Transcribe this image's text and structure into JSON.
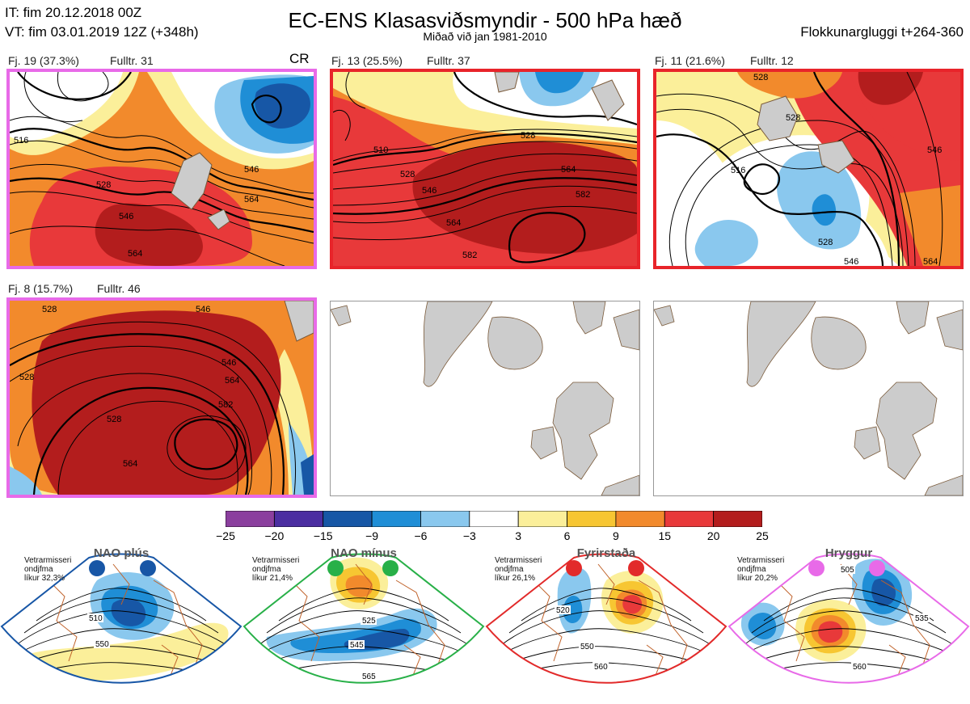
{
  "header": {
    "it_line": "IT: fim 20.12.2018 00Z",
    "vt_line": "VT: fim 03.01.2019 12Z  (+348h)",
    "title": "EC-ENS Klasasviðsmyndir - 500 hPa hæð",
    "subtitle": "Miðað við jan 1981-2010",
    "window": "Flokkunargluggi t+264-360"
  },
  "colors": {
    "pink": "#e86ae8",
    "red": "#e8242a",
    "land": "#cccccc",
    "coast": "#7a5a3a"
  },
  "clusters": [
    {
      "label": "Fj. 19 (37.3%)",
      "rep": "Fulltr. 31",
      "tag": "CR",
      "border": "pink",
      "contours": [
        "516",
        "528",
        "546",
        "564",
        "546",
        "564"
      ]
    },
    {
      "label": "Fj. 13 (25.5%)",
      "rep": "Fulltr. 37",
      "tag": "",
      "border": "red",
      "contours": [
        "510",
        "528",
        "546",
        "564",
        "582",
        "528",
        "564",
        "582"
      ]
    },
    {
      "label": "Fj. 11 (21.6%)",
      "rep": "Fulltr. 12",
      "tag": "",
      "border": "red",
      "contours": [
        "528",
        "516",
        "528",
        "546",
        "528",
        "546",
        "564"
      ]
    },
    {
      "label": "Fj. 8 (15.7%)",
      "rep": "Fulltr. 46",
      "tag": "",
      "border": "pink",
      "contours": [
        "528",
        "528",
        "546",
        "546",
        "564",
        "582",
        "528",
        "564"
      ]
    }
  ],
  "chart_data": {
    "type": "heatmap",
    "field": "500 hPa geopotential height anomaly (dam)",
    "colorbar": {
      "ticks": [
        "−25",
        "−20",
        "−15",
        "−9",
        "−6",
        "−3",
        "3",
        "6",
        "9",
        "15",
        "20",
        "25"
      ],
      "colors": [
        "#8b3f9e",
        "#4b2ea1",
        "#1757a6",
        "#1f8ed6",
        "#8ac8ee",
        "#ffffff",
        "#fbef9a",
        "#f7c632",
        "#f28a2c",
        "#e8393a",
        "#b31d1d"
      ]
    }
  },
  "regimes": [
    {
      "name": "NAO plús",
      "note": [
        "Vetrarmisseri",
        "ondjfma",
        "líkur 32,3%"
      ],
      "color": "#1756a6",
      "labels": [
        "510",
        "550"
      ]
    },
    {
      "name": "NAO mínus",
      "note": [
        "Vetrarmisseri",
        "ondjfma",
        "líkur 21,4%"
      ],
      "color": "#28b048",
      "labels": [
        "525",
        "545",
        "565"
      ]
    },
    {
      "name": "Fyrirstaða",
      "note": [
        "Vetrarmisseri",
        "ondjfma",
        "líkur 26,1%"
      ],
      "color": "#e22a2a",
      "labels": [
        "520",
        "550",
        "560"
      ]
    },
    {
      "name": "Hryggur",
      "note": [
        "Vetrarmisseri",
        "ondjfma",
        "líkur 20,2%"
      ],
      "color": "#e86ae8",
      "labels": [
        "505",
        "535",
        "560"
      ]
    }
  ]
}
